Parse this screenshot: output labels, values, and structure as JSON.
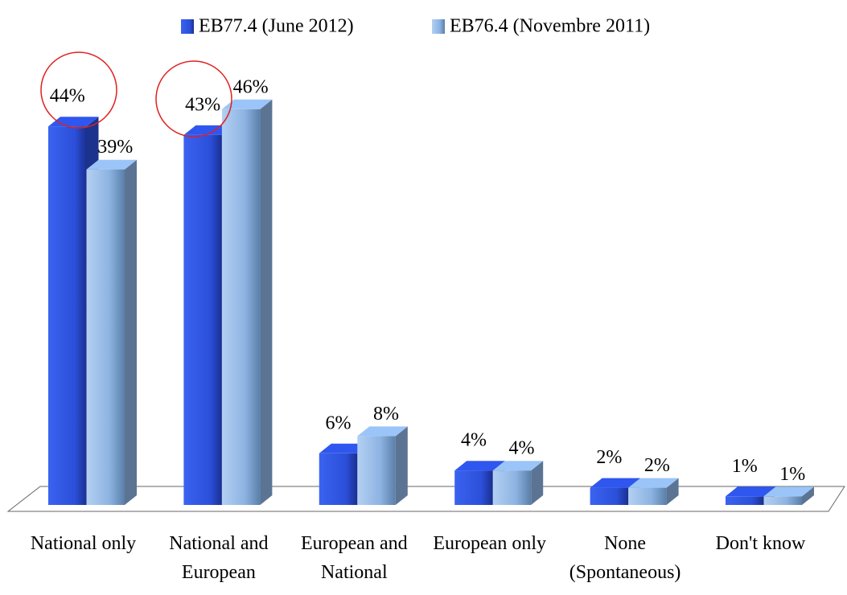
{
  "chart_data": {
    "type": "bar",
    "categories": [
      "National only",
      "National and European",
      "European and National",
      "European only",
      "None (Spontaneous)",
      "Don't know"
    ],
    "series": [
      {
        "name": "EB77.4 (June 2012)",
        "color": "#2b4fd9",
        "values": [
          44,
          43,
          6,
          4,
          2,
          1
        ],
        "value_labels": [
          "44%",
          "43%",
          "6%",
          "4%",
          "2%",
          "1%"
        ]
      },
      {
        "name": "EB76.4 (Novembre 2011)",
        "color": "#8db3e2",
        "values": [
          39,
          46,
          8,
          4,
          2,
          1
        ],
        "value_labels": [
          "39%",
          "46%",
          "8%",
          "4%",
          "2%",
          "1%"
        ]
      }
    ],
    "legend": "top"
  }
}
